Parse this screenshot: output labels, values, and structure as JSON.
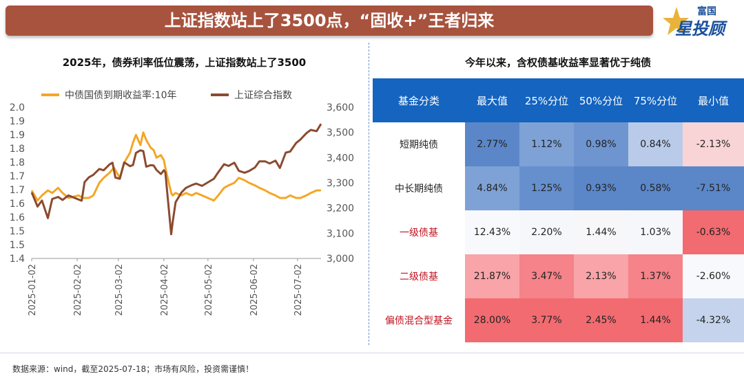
{
  "header": {
    "title": "上证指数站上了3500点，“固收+”王者归来"
  },
  "logo": {
    "top_text": "富国",
    "main_text": "星投顾"
  },
  "left_panel": {
    "title": "2025年，债券利率低位震荡，上证指数站上了3500"
  },
  "right_panel": {
    "title": "今年以来，含权债基收益率显著优于纯债"
  },
  "chart_data": {
    "type": "line",
    "x_tick_labels": [
      "2025-01-02",
      "2025-02-02",
      "2025-03-02",
      "2025-04-02",
      "2025-05-02",
      "2025-06-02",
      "2025-07-02"
    ],
    "x_range": [
      "2025-01-02",
      "2025-07-18"
    ],
    "left_axis": {
      "ticks": [
        "2.0",
        "1.9",
        "1.9",
        "1.8",
        "1.8",
        "1.7",
        "1.7",
        "1.6",
        "1.6",
        "1.5",
        "1.5",
        "1.4"
      ],
      "ylim": [
        1.4,
        2.0
      ]
    },
    "right_axis": {
      "ticks": [
        "3,600",
        "3,500",
        "3,400",
        "3,300",
        "3,200",
        "3,100",
        "3,000"
      ],
      "ylim": [
        3000,
        3600
      ]
    },
    "legend_position": "top",
    "grid": false,
    "series": [
      {
        "name": "中债国债到期收益率:10年",
        "axis": "left",
        "color": "#f5a623",
        "points": [
          [
            "2025-01-02",
            1.67
          ],
          [
            "2025-01-06",
            1.63
          ],
          [
            "2025-01-09",
            1.65
          ],
          [
            "2025-01-13",
            1.67
          ],
          [
            "2025-01-16",
            1.66
          ],
          [
            "2025-01-20",
            1.68
          ],
          [
            "2025-01-23",
            1.66
          ],
          [
            "2025-01-27",
            1.64
          ],
          [
            "2025-02-03",
            1.65
          ],
          [
            "2025-02-06",
            1.64
          ],
          [
            "2025-02-10",
            1.64
          ],
          [
            "2025-02-13",
            1.65
          ],
          [
            "2025-02-17",
            1.7
          ],
          [
            "2025-02-20",
            1.72
          ],
          [
            "2025-02-24",
            1.74
          ],
          [
            "2025-02-27",
            1.76
          ],
          [
            "2025-03-03",
            1.72
          ],
          [
            "2025-03-06",
            1.78
          ],
          [
            "2025-03-10",
            1.82
          ],
          [
            "2025-03-12",
            1.86
          ],
          [
            "2025-03-14",
            1.89
          ],
          [
            "2025-03-17",
            1.85
          ],
          [
            "2025-03-19",
            1.9
          ],
          [
            "2025-03-21",
            1.87
          ],
          [
            "2025-03-24",
            1.84
          ],
          [
            "2025-03-26",
            1.83
          ],
          [
            "2025-03-28",
            1.8
          ],
          [
            "2025-03-31",
            1.81
          ],
          [
            "2025-04-02",
            1.79
          ],
          [
            "2025-04-03",
            1.76
          ],
          [
            "2025-04-07",
            1.66
          ],
          [
            "2025-04-08",
            1.65
          ],
          [
            "2025-04-10",
            1.66
          ],
          [
            "2025-04-14",
            1.65
          ],
          [
            "2025-04-17",
            1.66
          ],
          [
            "2025-04-21",
            1.65
          ],
          [
            "2025-04-24",
            1.66
          ],
          [
            "2025-04-28",
            1.65
          ],
          [
            "2025-05-06",
            1.63
          ],
          [
            "2025-05-09",
            1.65
          ],
          [
            "2025-05-13",
            1.68
          ],
          [
            "2025-05-16",
            1.69
          ],
          [
            "2025-05-20",
            1.7
          ],
          [
            "2025-05-23",
            1.72
          ],
          [
            "2025-05-27",
            1.71
          ],
          [
            "2025-05-30",
            1.7
          ],
          [
            "2025-06-03",
            1.69
          ],
          [
            "2025-06-06",
            1.68
          ],
          [
            "2025-06-10",
            1.67
          ],
          [
            "2025-06-13",
            1.66
          ],
          [
            "2025-06-17",
            1.65
          ],
          [
            "2025-06-20",
            1.64
          ],
          [
            "2025-06-24",
            1.64
          ],
          [
            "2025-06-27",
            1.65
          ],
          [
            "2025-07-01",
            1.64
          ],
          [
            "2025-07-04",
            1.64
          ],
          [
            "2025-07-08",
            1.65
          ],
          [
            "2025-07-11",
            1.66
          ],
          [
            "2025-07-15",
            1.67
          ],
          [
            "2025-07-18",
            1.67
          ]
        ]
      },
      {
        "name": "上证综合指数",
        "axis": "right",
        "color": "#8b4a2f",
        "points": [
          [
            "2025-01-02",
            3262
          ],
          [
            "2025-01-06",
            3206
          ],
          [
            "2025-01-09",
            3230
          ],
          [
            "2025-01-13",
            3160
          ],
          [
            "2025-01-16",
            3236
          ],
          [
            "2025-01-20",
            3244
          ],
          [
            "2025-01-23",
            3232
          ],
          [
            "2025-01-27",
            3250
          ],
          [
            "2025-02-05",
            3229
          ],
          [
            "2025-02-07",
            3303
          ],
          [
            "2025-02-10",
            3322
          ],
          [
            "2025-02-13",
            3332
          ],
          [
            "2025-02-17",
            3355
          ],
          [
            "2025-02-20",
            3350
          ],
          [
            "2025-02-24",
            3373
          ],
          [
            "2025-02-26",
            3380
          ],
          [
            "2025-02-28",
            3321
          ],
          [
            "2025-03-03",
            3316
          ],
          [
            "2025-03-06",
            3381
          ],
          [
            "2025-03-10",
            3366
          ],
          [
            "2025-03-12",
            3371
          ],
          [
            "2025-03-14",
            3419
          ],
          [
            "2025-03-17",
            3429
          ],
          [
            "2025-03-19",
            3426
          ],
          [
            "2025-03-21",
            3364
          ],
          [
            "2025-03-24",
            3370
          ],
          [
            "2025-03-26",
            3369
          ],
          [
            "2025-03-28",
            3351
          ],
          [
            "2025-03-31",
            3335
          ],
          [
            "2025-04-02",
            3350
          ],
          [
            "2025-04-03",
            3342
          ],
          [
            "2025-04-07",
            3096
          ],
          [
            "2025-04-08",
            3145
          ],
          [
            "2025-04-10",
            3223
          ],
          [
            "2025-04-14",
            3262
          ],
          [
            "2025-04-17",
            3280
          ],
          [
            "2025-04-21",
            3291
          ],
          [
            "2025-04-24",
            3297
          ],
          [
            "2025-04-28",
            3288
          ],
          [
            "2025-05-06",
            3316
          ],
          [
            "2025-05-09",
            3342
          ],
          [
            "2025-05-13",
            3374
          ],
          [
            "2025-05-16",
            3367
          ],
          [
            "2025-05-20",
            3380
          ],
          [
            "2025-05-23",
            3348
          ],
          [
            "2025-05-27",
            3340
          ],
          [
            "2025-05-30",
            3347
          ],
          [
            "2025-06-03",
            3361
          ],
          [
            "2025-06-06",
            3385
          ],
          [
            "2025-06-10",
            3385
          ],
          [
            "2025-06-13",
            3377
          ],
          [
            "2025-06-17",
            3388
          ],
          [
            "2025-06-20",
            3359
          ],
          [
            "2025-06-24",
            3420
          ],
          [
            "2025-06-27",
            3424
          ],
          [
            "2025-07-01",
            3458
          ],
          [
            "2025-07-04",
            3472
          ],
          [
            "2025-07-08",
            3497
          ],
          [
            "2025-07-11",
            3510
          ],
          [
            "2025-07-15",
            3505
          ],
          [
            "2025-07-18",
            3534
          ]
        ]
      }
    ]
  },
  "table": {
    "headers": [
      "基金分类",
      "最大值",
      "25%分位",
      "50%分位",
      "75%分位",
      "最小值"
    ],
    "rows": [
      {
        "name": "短期纯债",
        "name_color": "#222222",
        "cells": [
          {
            "v": "2.77%",
            "bg": "#5b87c9"
          },
          {
            "v": "1.12%",
            "bg": "#7ea2d6"
          },
          {
            "v": "0.98%",
            "bg": "#6e95d0"
          },
          {
            "v": "0.84%",
            "bg": "#b9cbe8"
          },
          {
            "v": "-2.13%",
            "bg": "#f9d4d6"
          }
        ]
      },
      {
        "name": "中长期纯债",
        "name_color": "#222222",
        "cells": [
          {
            "v": "4.84%",
            "bg": "#7ea2d6"
          },
          {
            "v": "1.25%",
            "bg": "#6690cd"
          },
          {
            "v": "0.93%",
            "bg": "#5b87c9"
          },
          {
            "v": "0.58%",
            "bg": "#5b87c9"
          },
          {
            "v": "-7.51%",
            "bg": "#5b87c9"
          }
        ]
      },
      {
        "name": "一级债基",
        "name_color": "#c0121f",
        "cells": [
          {
            "v": "12.43%",
            "bg": "#f8f9fc"
          },
          {
            "v": "2.20%",
            "bg": "#f6f7fb"
          },
          {
            "v": "1.44%",
            "bg": "#f7f7fa"
          },
          {
            "v": "1.03%",
            "bg": "#f6f7fb"
          },
          {
            "v": "-0.63%",
            "bg": "#f26b70"
          }
        ]
      },
      {
        "name": "二级债基",
        "name_color": "#c0121f",
        "cells": [
          {
            "v": "21.87%",
            "bg": "#f8a4a8"
          },
          {
            "v": "3.47%",
            "bg": "#f58389"
          },
          {
            "v": "2.13%",
            "bg": "#f8a4a8"
          },
          {
            "v": "1.37%",
            "bg": "#f58389"
          },
          {
            "v": "-2.60%",
            "bg": "#f8f9fc"
          }
        ]
      },
      {
        "name": "偏债混合型基金",
        "name_color": "#c0121f",
        "cells": [
          {
            "v": "28.00%",
            "bg": "#f26b70"
          },
          {
            "v": "3.77%",
            "bg": "#f26b70"
          },
          {
            "v": "2.45%",
            "bg": "#f26b70"
          },
          {
            "v": "1.44%",
            "bg": "#f26b70"
          },
          {
            "v": "-4.32%",
            "bg": "#c5d4ec"
          }
        ]
      }
    ]
  },
  "footer": {
    "text": "数据来源：wind，截至2025-07-18；市场有风险，投资需谨慎！"
  }
}
